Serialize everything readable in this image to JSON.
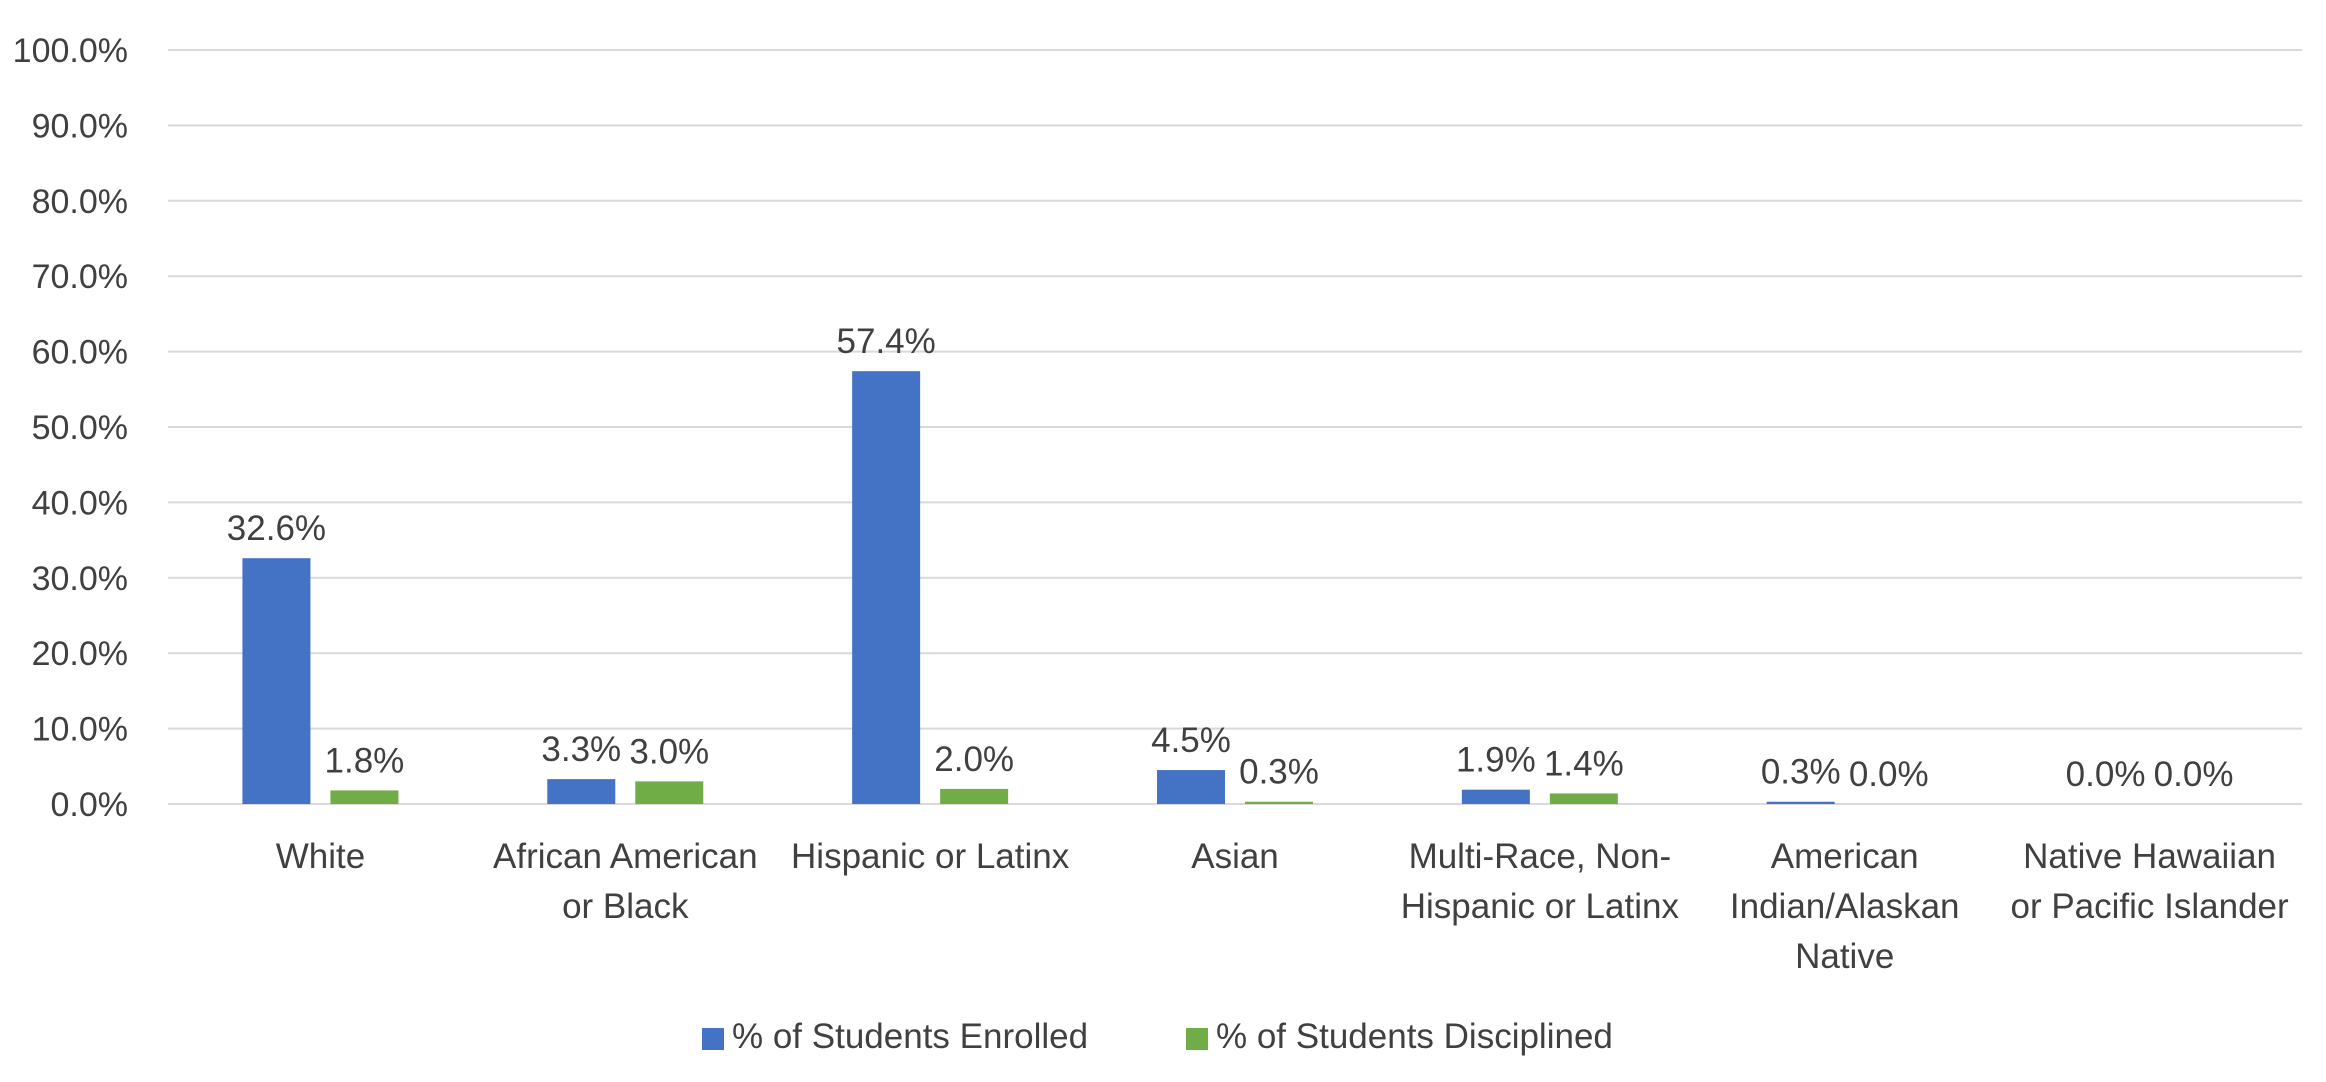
{
  "chart_data": {
    "type": "bar",
    "categories": [
      [
        "White"
      ],
      [
        "African American",
        "or Black"
      ],
      [
        "Hispanic or Latinx"
      ],
      [
        "Asian"
      ],
      [
        "Multi-Race, Non-",
        "Hispanic or Latinx"
      ],
      [
        "American",
        "Indian/Alaskan",
        "Native"
      ],
      [
        "Native Hawaiian",
        "or Pacific Islander"
      ]
    ],
    "series": [
      {
        "name": "% of Students Enrolled",
        "color": "#4472C4",
        "values": [
          32.6,
          3.3,
          57.4,
          4.5,
          1.9,
          0.3,
          0.0
        ],
        "labels": [
          "32.6%",
          "3.3%",
          "57.4%",
          "4.5%",
          "1.9%",
          "0.3%",
          "0.0%"
        ]
      },
      {
        "name": "% of Students Disciplined",
        "color": "#70AD47",
        "values": [
          1.8,
          3.0,
          2.0,
          0.3,
          1.4,
          0.0,
          0.0
        ],
        "labels": [
          "1.8%",
          "3.0%",
          "2.0%",
          "0.3%",
          "1.4%",
          "0.0%",
          "0.0%"
        ]
      }
    ],
    "ylim": [
      0,
      100
    ],
    "yticks": [
      "0.0%",
      "10.0%",
      "20.0%",
      "30.0%",
      "40.0%",
      "50.0%",
      "60.0%",
      "70.0%",
      "80.0%",
      "90.0%",
      "100.0%"
    ],
    "grid": true,
    "legend": "bottom",
    "gridline_color": "#D9D9D9"
  }
}
